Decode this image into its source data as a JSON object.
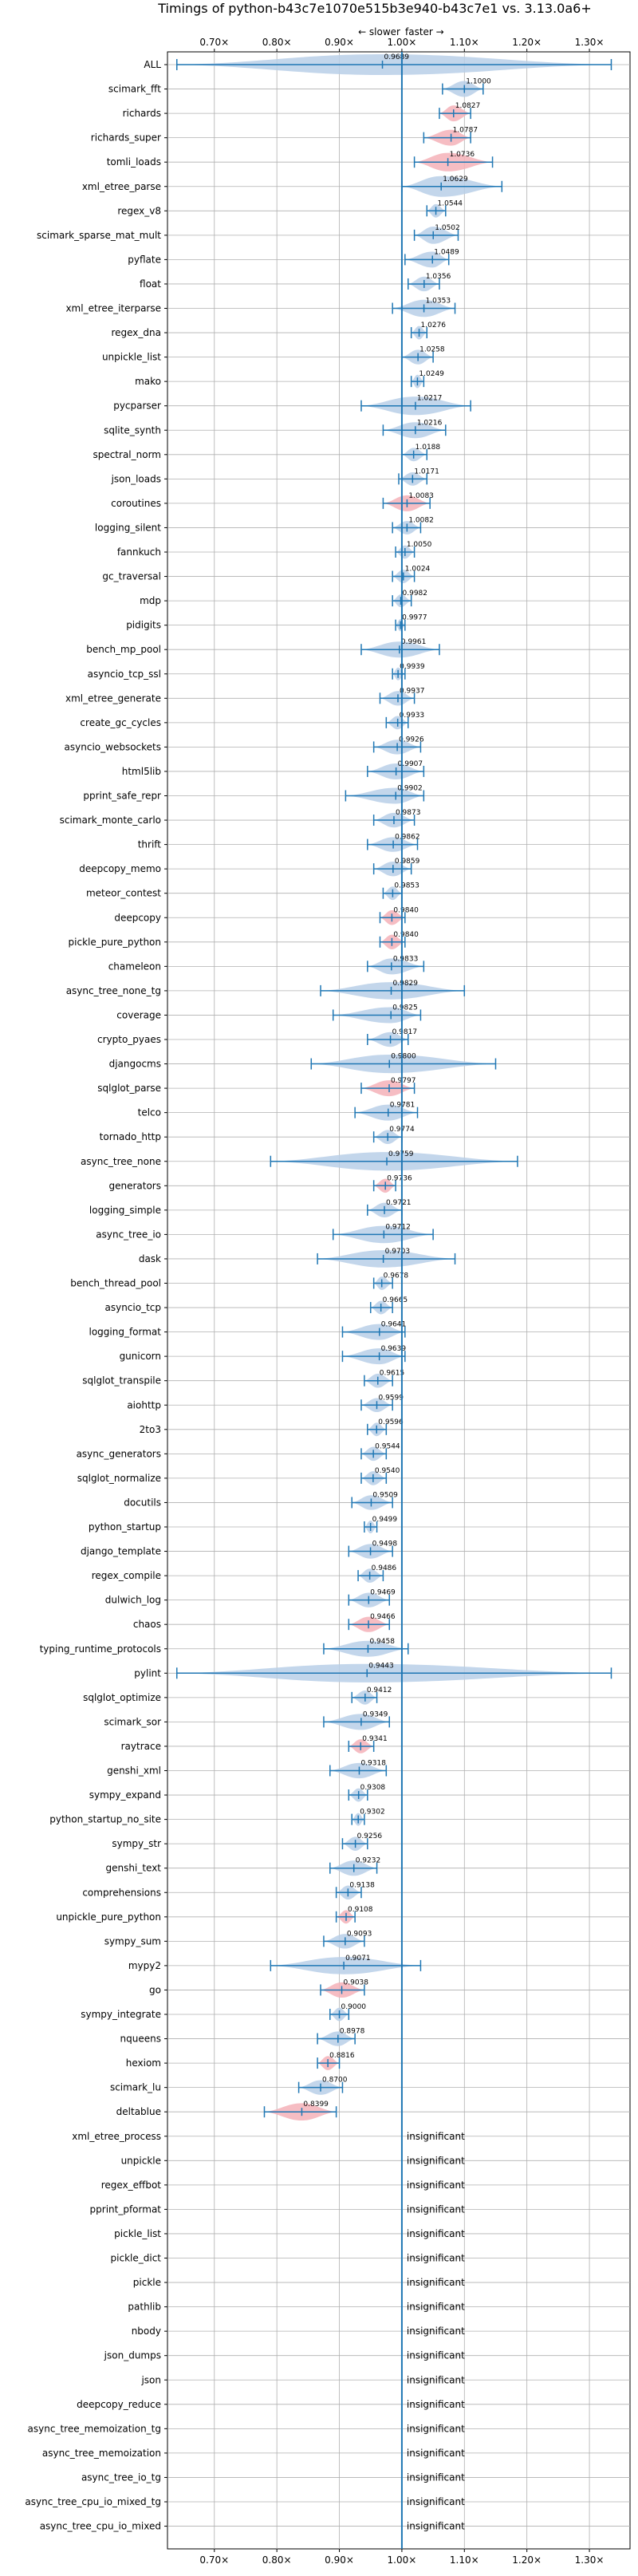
{
  "chart_data": {
    "type": "violin",
    "title": "Timings of python-b43c7e1070e515b3e940-b43c7e1 vs. 3.13.0a6+",
    "direction_note": {
      "slower": "← slower",
      "faster": "faster →"
    },
    "x_ticks": [
      {
        "value": 0.7,
        "label": "0.70×"
      },
      {
        "value": 0.8,
        "label": "0.80×"
      },
      {
        "value": 0.9,
        "label": "0.90×"
      },
      {
        "value": 1.0,
        "label": "1.00×"
      },
      {
        "value": 1.1,
        "label": "1.10×"
      },
      {
        "value": 1.2,
        "label": "1.20×"
      },
      {
        "value": 1.3,
        "label": "1.30×"
      }
    ],
    "xlim": [
      0.625,
      1.365
    ],
    "grid": true,
    "colors": {
      "normal": "#b9cfe8",
      "highlight": "#f5b1b8",
      "median_line": "#1f77b4",
      "whisker": "#1f77b4",
      "grid": "#b0b0b0"
    },
    "insignificant_label": "insignificant",
    "benchmarks": [
      {
        "name": "ALL",
        "median": 0.9689,
        "label": "0.9689",
        "lo": 0.64,
        "hi": 1.335,
        "spread": 0.1,
        "color": "normal"
      },
      {
        "name": "scimark_fft",
        "median": 1.1,
        "label": "1.1000",
        "lo": 1.065,
        "hi": 1.13,
        "spread": 0.05,
        "color": "normal"
      },
      {
        "name": "richards",
        "median": 1.0827,
        "label": "1.0827",
        "lo": 1.06,
        "hi": 1.11,
        "spread": 0.05,
        "color": "highlight"
      },
      {
        "name": "richards_super",
        "median": 1.0787,
        "label": "1.0787",
        "lo": 1.035,
        "hi": 1.11,
        "spread": 0.05,
        "color": "highlight"
      },
      {
        "name": "tomli_loads",
        "median": 1.0736,
        "label": "1.0736",
        "lo": 1.02,
        "hi": 1.145,
        "spread": 0.07,
        "color": "highlight"
      },
      {
        "name": "xml_etree_parse",
        "median": 1.0629,
        "label": "1.0629",
        "lo": 1.0,
        "hi": 1.16,
        "spread": 0.09,
        "color": "normal"
      },
      {
        "name": "regex_v8",
        "median": 1.0544,
        "label": "1.0544",
        "lo": 1.04,
        "hi": 1.07,
        "spread": 0.03,
        "color": "normal"
      },
      {
        "name": "scimark_sparse_mat_mult",
        "median": 1.0502,
        "label": "1.0502",
        "lo": 1.02,
        "hi": 1.09,
        "spread": 0.06,
        "color": "normal"
      },
      {
        "name": "pyflate",
        "median": 1.0489,
        "label": "1.0489",
        "lo": 1.005,
        "hi": 1.075,
        "spread": 0.05,
        "color": "normal"
      },
      {
        "name": "float",
        "median": 1.0356,
        "label": "1.0356",
        "lo": 1.01,
        "hi": 1.06,
        "spread": 0.04,
        "color": "normal"
      },
      {
        "name": "xml_etree_iterparse",
        "median": 1.0353,
        "label": "1.0353",
        "lo": 0.985,
        "hi": 1.085,
        "spread": 0.06,
        "color": "normal"
      },
      {
        "name": "regex_dna",
        "median": 1.0276,
        "label": "1.0276",
        "lo": 1.015,
        "hi": 1.04,
        "spread": 0.03,
        "color": "normal"
      },
      {
        "name": "unpickle_list",
        "median": 1.0258,
        "label": "1.0258",
        "lo": 1.0,
        "hi": 1.05,
        "spread": 0.04,
        "color": "normal"
      },
      {
        "name": "mako",
        "median": 1.0249,
        "label": "1.0249",
        "lo": 1.015,
        "hi": 1.035,
        "spread": 0.03,
        "color": "normal"
      },
      {
        "name": "pycparser",
        "median": 1.0217,
        "label": "1.0217",
        "lo": 0.935,
        "hi": 1.11,
        "spread": 0.07,
        "color": "normal"
      },
      {
        "name": "sqlite_synth",
        "median": 1.0216,
        "label": "1.0216",
        "lo": 0.97,
        "hi": 1.07,
        "spread": 0.05,
        "color": "normal"
      },
      {
        "name": "spectral_norm",
        "median": 1.0188,
        "label": "1.0188",
        "lo": 1.0,
        "hi": 1.04,
        "spread": 0.03,
        "color": "normal"
      },
      {
        "name": "json_loads",
        "median": 1.0171,
        "label": "1.0171",
        "lo": 0.995,
        "hi": 1.04,
        "spread": 0.03,
        "color": "normal"
      },
      {
        "name": "coroutines",
        "median": 1.0083,
        "label": "1.0083",
        "lo": 0.97,
        "hi": 1.045,
        "spread": 0.05,
        "color": "highlight"
      },
      {
        "name": "logging_silent",
        "median": 1.0082,
        "label": "1.0082",
        "lo": 0.985,
        "hi": 1.03,
        "spread": 0.03,
        "color": "normal"
      },
      {
        "name": "fannkuch",
        "median": 1.005,
        "label": "1.0050",
        "lo": 0.99,
        "hi": 1.02,
        "spread": 0.03,
        "color": "normal"
      },
      {
        "name": "gc_traversal",
        "median": 1.0024,
        "label": "1.0024",
        "lo": 0.985,
        "hi": 1.02,
        "spread": 0.03,
        "color": "normal"
      },
      {
        "name": "mdp",
        "median": 0.9982,
        "label": "0.9982",
        "lo": 0.985,
        "hi": 1.015,
        "spread": 0.025,
        "color": "normal"
      },
      {
        "name": "pidigits",
        "median": 0.9977,
        "label": "0.9977",
        "lo": 0.99,
        "hi": 1.005,
        "spread": 0.02,
        "color": "normal"
      },
      {
        "name": "bench_mp_pool",
        "median": 0.9961,
        "label": "0.9961",
        "lo": 0.935,
        "hi": 1.06,
        "spread": 0.05,
        "color": "normal"
      },
      {
        "name": "asyncio_tcp_ssl",
        "median": 0.9939,
        "label": "0.9939",
        "lo": 0.985,
        "hi": 1.005,
        "spread": 0.025,
        "color": "normal"
      },
      {
        "name": "xml_etree_generate",
        "median": 0.9937,
        "label": "0.9937",
        "lo": 0.965,
        "hi": 1.02,
        "spread": 0.04,
        "color": "normal"
      },
      {
        "name": "create_gc_cycles",
        "median": 0.9933,
        "label": "0.9933",
        "lo": 0.975,
        "hi": 1.01,
        "spread": 0.03,
        "color": "normal"
      },
      {
        "name": "asyncio_websockets",
        "median": 0.9926,
        "label": "0.9926",
        "lo": 0.955,
        "hi": 1.03,
        "spread": 0.04,
        "color": "normal"
      },
      {
        "name": "html5lib",
        "median": 0.9907,
        "label": "0.9907",
        "lo": 0.945,
        "hi": 1.035,
        "spread": 0.05,
        "color": "normal"
      },
      {
        "name": "pprint_safe_repr",
        "median": 0.9902,
        "label": "0.9902",
        "lo": 0.91,
        "hi": 1.035,
        "spread": 0.05,
        "color": "normal"
      },
      {
        "name": "scimark_monte_carlo",
        "median": 0.9873,
        "label": "0.9873",
        "lo": 0.955,
        "hi": 1.02,
        "spread": 0.04,
        "color": "normal"
      },
      {
        "name": "thrift",
        "median": 0.9862,
        "label": "0.9862",
        "lo": 0.945,
        "hi": 1.025,
        "spread": 0.04,
        "color": "normal"
      },
      {
        "name": "deepcopy_memo",
        "median": 0.9859,
        "label": "0.9859",
        "lo": 0.955,
        "hi": 1.015,
        "spread": 0.04,
        "color": "normal"
      },
      {
        "name": "meteor_contest",
        "median": 0.9853,
        "label": "0.9853",
        "lo": 0.97,
        "hi": 1.0,
        "spread": 0.03,
        "color": "normal"
      },
      {
        "name": "deepcopy",
        "median": 0.984,
        "label": "0.9840",
        "lo": 0.965,
        "hi": 1.005,
        "spread": 0.04,
        "color": "highlight"
      },
      {
        "name": "pickle_pure_python",
        "median": 0.984,
        "label": "0.9840",
        "lo": 0.965,
        "hi": 1.005,
        "spread": 0.04,
        "color": "highlight"
      },
      {
        "name": "chameleon",
        "median": 0.9833,
        "label": "0.9833",
        "lo": 0.945,
        "hi": 1.035,
        "spread": 0.05,
        "color": "normal"
      },
      {
        "name": "async_tree_none_tg",
        "median": 0.9829,
        "label": "0.9829",
        "lo": 0.87,
        "hi": 1.1,
        "spread": 0.06,
        "color": "normal"
      },
      {
        "name": "coverage",
        "median": 0.9825,
        "label": "0.9825",
        "lo": 0.89,
        "hi": 1.03,
        "spread": 0.05,
        "color": "normal"
      },
      {
        "name": "crypto_pyaes",
        "median": 0.9817,
        "label": "0.9817",
        "lo": 0.945,
        "hi": 1.01,
        "spread": 0.04,
        "color": "normal"
      },
      {
        "name": "djangocms",
        "median": 0.98,
        "label": "0.9800",
        "lo": 0.855,
        "hi": 1.15,
        "spread": 0.07,
        "color": "normal"
      },
      {
        "name": "sqlglot_parse",
        "median": 0.9797,
        "label": "0.9797",
        "lo": 0.935,
        "hi": 1.02,
        "spread": 0.05,
        "color": "highlight"
      },
      {
        "name": "telco",
        "median": 0.9781,
        "label": "0.9781",
        "lo": 0.925,
        "hi": 1.025,
        "spread": 0.05,
        "color": "normal"
      },
      {
        "name": "tornado_http",
        "median": 0.9774,
        "label": "0.9774",
        "lo": 0.955,
        "hi": 1.0,
        "spread": 0.035,
        "color": "normal"
      },
      {
        "name": "async_tree_none",
        "median": 0.9759,
        "label": "0.9759",
        "lo": 0.79,
        "hi": 1.185,
        "spread": 0.07,
        "color": "normal"
      },
      {
        "name": "generators",
        "median": 0.9736,
        "label": "0.9736",
        "lo": 0.955,
        "hi": 0.99,
        "spread": 0.035,
        "color": "highlight"
      },
      {
        "name": "logging_simple",
        "median": 0.9721,
        "label": "0.9721",
        "lo": 0.945,
        "hi": 1.0,
        "spread": 0.04,
        "color": "normal"
      },
      {
        "name": "async_tree_io",
        "median": 0.9712,
        "label": "0.9712",
        "lo": 0.89,
        "hi": 1.05,
        "spread": 0.06,
        "color": "normal"
      },
      {
        "name": "dask",
        "median": 0.9703,
        "label": "0.9703",
        "lo": 0.865,
        "hi": 1.085,
        "spread": 0.06,
        "color": "normal"
      },
      {
        "name": "bench_thread_pool",
        "median": 0.9678,
        "label": "0.9678",
        "lo": 0.955,
        "hi": 0.985,
        "spread": 0.03,
        "color": "normal"
      },
      {
        "name": "asyncio_tcp",
        "median": 0.9665,
        "label": "0.9665",
        "lo": 0.95,
        "hi": 0.985,
        "spread": 0.03,
        "color": "normal"
      },
      {
        "name": "logging_format",
        "median": 0.9641,
        "label": "0.9641",
        "lo": 0.905,
        "hi": 1.005,
        "spread": 0.05,
        "color": "normal"
      },
      {
        "name": "gunicorn",
        "median": 0.9639,
        "label": "0.9639",
        "lo": 0.905,
        "hi": 1.005,
        "spread": 0.05,
        "color": "normal"
      },
      {
        "name": "sqlglot_transpile",
        "median": 0.9615,
        "label": "0.9615",
        "lo": 0.94,
        "hi": 0.985,
        "spread": 0.035,
        "color": "normal"
      },
      {
        "name": "aiohttp",
        "median": 0.9599,
        "label": "0.9599",
        "lo": 0.935,
        "hi": 0.985,
        "spread": 0.035,
        "color": "normal"
      },
      {
        "name": "2to3",
        "median": 0.9596,
        "label": "0.9596",
        "lo": 0.945,
        "hi": 0.975,
        "spread": 0.03,
        "color": "normal"
      },
      {
        "name": "async_generators",
        "median": 0.9544,
        "label": "0.9544",
        "lo": 0.935,
        "hi": 0.975,
        "spread": 0.035,
        "color": "normal"
      },
      {
        "name": "sqlglot_normalize",
        "median": 0.954,
        "label": "0.9540",
        "lo": 0.935,
        "hi": 0.975,
        "spread": 0.035,
        "color": "normal"
      },
      {
        "name": "docutils",
        "median": 0.9509,
        "label": "0.9509",
        "lo": 0.92,
        "hi": 0.985,
        "spread": 0.04,
        "color": "normal"
      },
      {
        "name": "python_startup",
        "median": 0.9499,
        "label": "0.9499",
        "lo": 0.94,
        "hi": 0.96,
        "spread": 0.025,
        "color": "normal"
      },
      {
        "name": "django_template",
        "median": 0.9498,
        "label": "0.9498",
        "lo": 0.915,
        "hi": 0.985,
        "spread": 0.04,
        "color": "normal"
      },
      {
        "name": "regex_compile",
        "median": 0.9486,
        "label": "0.9486",
        "lo": 0.93,
        "hi": 0.97,
        "spread": 0.035,
        "color": "normal"
      },
      {
        "name": "dulwich_log",
        "median": 0.9469,
        "label": "0.9469",
        "lo": 0.915,
        "hi": 0.98,
        "spread": 0.04,
        "color": "normal"
      },
      {
        "name": "chaos",
        "median": 0.9466,
        "label": "0.9466",
        "lo": 0.915,
        "hi": 0.98,
        "spread": 0.045,
        "color": "highlight"
      },
      {
        "name": "typing_runtime_protocols",
        "median": 0.9458,
        "label": "0.9458",
        "lo": 0.875,
        "hi": 1.01,
        "spread": 0.05,
        "color": "normal"
      },
      {
        "name": "pylint",
        "median": 0.9443,
        "label": "0.9443",
        "lo": 0.64,
        "hi": 1.335,
        "spread": 0.07,
        "color": "normal"
      },
      {
        "name": "sqlglot_optimize",
        "median": 0.9412,
        "label": "0.9412",
        "lo": 0.92,
        "hi": 0.96,
        "spread": 0.035,
        "color": "normal"
      },
      {
        "name": "scimark_sor",
        "median": 0.9349,
        "label": "0.9349",
        "lo": 0.875,
        "hi": 0.98,
        "spread": 0.05,
        "color": "normal"
      },
      {
        "name": "raytrace",
        "median": 0.9341,
        "label": "0.9341",
        "lo": 0.915,
        "hi": 0.955,
        "spread": 0.035,
        "color": "highlight"
      },
      {
        "name": "genshi_xml",
        "median": 0.9318,
        "label": "0.9318",
        "lo": 0.885,
        "hi": 0.975,
        "spread": 0.045,
        "color": "normal"
      },
      {
        "name": "sympy_expand",
        "median": 0.9308,
        "label": "0.9308",
        "lo": 0.915,
        "hi": 0.945,
        "spread": 0.03,
        "color": "normal"
      },
      {
        "name": "python_startup_no_site",
        "median": 0.9302,
        "label": "0.9302",
        "lo": 0.92,
        "hi": 0.94,
        "spread": 0.025,
        "color": "normal"
      },
      {
        "name": "sympy_str",
        "median": 0.9256,
        "label": "0.9256",
        "lo": 0.905,
        "hi": 0.945,
        "spread": 0.035,
        "color": "normal"
      },
      {
        "name": "genshi_text",
        "median": 0.9232,
        "label": "0.9232",
        "lo": 0.885,
        "hi": 0.96,
        "spread": 0.045,
        "color": "normal"
      },
      {
        "name": "comprehensions",
        "median": 0.9138,
        "label": "0.9138",
        "lo": 0.895,
        "hi": 0.935,
        "spread": 0.035,
        "color": "normal"
      },
      {
        "name": "unpickle_pure_python",
        "median": 0.9108,
        "label": "0.9108",
        "lo": 0.895,
        "hi": 0.925,
        "spread": 0.03,
        "color": "highlight"
      },
      {
        "name": "sympy_sum",
        "median": 0.9093,
        "label": "0.9093",
        "lo": 0.875,
        "hi": 0.94,
        "spread": 0.04,
        "color": "normal"
      },
      {
        "name": "mypy2",
        "median": 0.9071,
        "label": "0.9071",
        "lo": 0.79,
        "hi": 1.03,
        "spread": 0.06,
        "color": "normal"
      },
      {
        "name": "go",
        "median": 0.9038,
        "label": "0.9038",
        "lo": 0.87,
        "hi": 0.94,
        "spread": 0.045,
        "color": "highlight"
      },
      {
        "name": "sympy_integrate",
        "median": 0.9,
        "label": "0.9000",
        "lo": 0.885,
        "hi": 0.915,
        "spread": 0.03,
        "color": "normal"
      },
      {
        "name": "nqueens",
        "median": 0.8978,
        "label": "0.8978",
        "lo": 0.865,
        "hi": 0.925,
        "spread": 0.04,
        "color": "normal"
      },
      {
        "name": "hexiom",
        "median": 0.8816,
        "label": "0.8816",
        "lo": 0.865,
        "hi": 0.9,
        "spread": 0.035,
        "color": "highlight"
      },
      {
        "name": "scimark_lu",
        "median": 0.87,
        "label": "0.8700",
        "lo": 0.835,
        "hi": 0.905,
        "spread": 0.04,
        "color": "normal"
      },
      {
        "name": "deltablue",
        "median": 0.8399,
        "label": "0.8399",
        "lo": 0.78,
        "hi": 0.895,
        "spread": 0.06,
        "color": "highlight"
      }
    ],
    "insignificant": [
      "xml_etree_process",
      "unpickle",
      "regex_effbot",
      "pprint_pformat",
      "pickle_list",
      "pickle_dict",
      "pickle",
      "pathlib",
      "nbody",
      "json_dumps",
      "json",
      "deepcopy_reduce",
      "async_tree_memoization_tg",
      "async_tree_memoization",
      "async_tree_io_tg",
      "async_tree_cpu_io_mixed_tg",
      "async_tree_cpu_io_mixed"
    ]
  }
}
